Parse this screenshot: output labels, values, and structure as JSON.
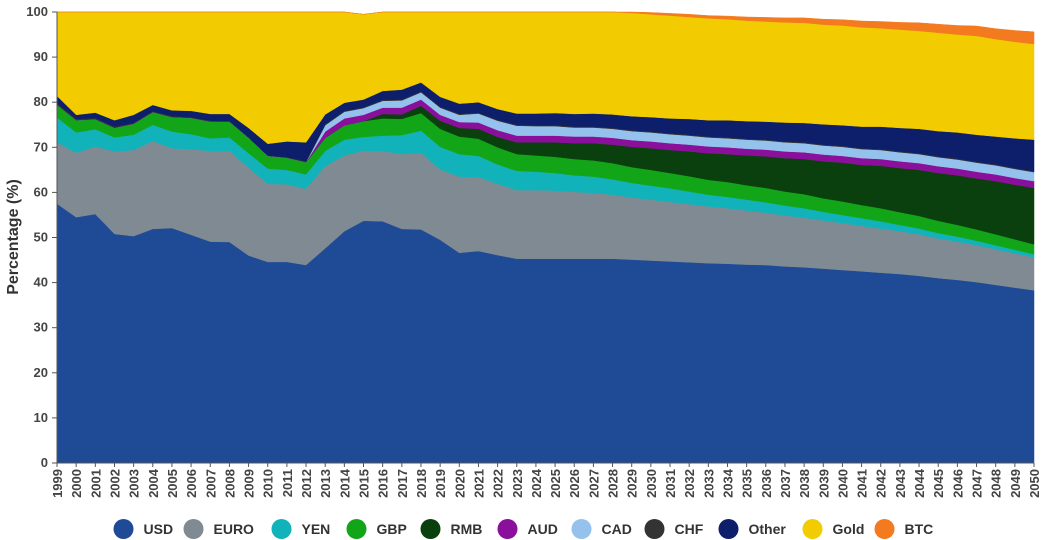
{
  "chart_data": {
    "type": "area",
    "stacked": true,
    "ylabel": "Percentage (%)",
    "ylim": [
      0,
      100
    ],
    "yticks": [
      0,
      10,
      20,
      30,
      40,
      50,
      60,
      70,
      80,
      90,
      100
    ],
    "legend_position": "bottom",
    "x": [
      1999,
      2000,
      2001,
      2002,
      2003,
      2004,
      2005,
      2006,
      2007,
      2008,
      2009,
      2010,
      2011,
      2012,
      2013,
      2014,
      2015,
      2016,
      2017,
      2018,
      2019,
      2020,
      2021,
      2022,
      2023,
      2024,
      2025,
      2026,
      2027,
      2028,
      2029,
      2030,
      2031,
      2032,
      2033,
      2034,
      2035,
      2036,
      2037,
      2038,
      2039,
      2040,
      2041,
      2042,
      2043,
      2044,
      2045,
      2046,
      2047,
      2048,
      2049,
      2050
    ],
    "series": [
      {
        "name": "USD",
        "color": "#1f4a96",
        "values": [
          57.5,
          54.5,
          55.2,
          50.8,
          50.3,
          51.9,
          52.1,
          50.6,
          49.1,
          49.0,
          46.0,
          44.6,
          44.6,
          43.9,
          47.6,
          51.4,
          53.7,
          53.6,
          51.9,
          51.8,
          49.5,
          46.6,
          47.0,
          46.1,
          45.3,
          45.3,
          45.3,
          45.3,
          45.3,
          45.3,
          45.1,
          44.9,
          44.7,
          44.5,
          44.3,
          44.2,
          44.0,
          43.9,
          43.6,
          43.4,
          43.1,
          42.8,
          42.5,
          42.2,
          41.9,
          41.5,
          41.0,
          40.6,
          40.1,
          39.5,
          38.9,
          38.3
        ]
      },
      {
        "name": "EURO",
        "color": "#7f8a93",
        "values": [
          13.6,
          14.3,
          15.0,
          18.3,
          19.1,
          19.5,
          17.7,
          19.0,
          20.1,
          20.2,
          19.5,
          17.3,
          17.2,
          16.9,
          18.2,
          16.8,
          15.6,
          15.6,
          16.6,
          17.0,
          15.6,
          16.9,
          16.4,
          15.8,
          15.2,
          15.2,
          15.1,
          14.8,
          14.6,
          14.2,
          13.8,
          13.5,
          13.2,
          12.9,
          12.6,
          12.3,
          12.0,
          11.6,
          11.3,
          11.0,
          10.7,
          10.4,
          10.1,
          9.8,
          9.5,
          9.2,
          8.8,
          8.5,
          8.2,
          7.9,
          7.6,
          7.3
        ]
      },
      {
        "name": "YEN",
        "color": "#12b2bb",
        "values": [
          5.5,
          4.5,
          3.8,
          3.1,
          3.4,
          3.6,
          3.7,
          3.3,
          2.8,
          3.0,
          3.2,
          3.4,
          3.2,
          3.2,
          3.4,
          3.5,
          3.0,
          3.4,
          4.2,
          4.9,
          5.0,
          5.0,
          4.7,
          4.3,
          4.3,
          4.1,
          3.9,
          3.7,
          3.6,
          3.4,
          3.2,
          3.1,
          3.0,
          2.8,
          2.6,
          2.5,
          2.4,
          2.3,
          2.2,
          2.1,
          1.9,
          1.8,
          1.7,
          1.6,
          1.4,
          1.3,
          1.2,
          1.1,
          1.0,
          0.9,
          0.8,
          0.7
        ]
      },
      {
        "name": "GBP",
        "color": "#13a518",
        "values": [
          2.8,
          2.7,
          2.2,
          2.1,
          2.4,
          2.8,
          3.2,
          3.6,
          3.7,
          3.5,
          3.4,
          2.8,
          2.7,
          2.7,
          2.9,
          3.2,
          3.5,
          3.8,
          3.6,
          3.9,
          4.0,
          3.9,
          3.8,
          3.8,
          3.7,
          3.6,
          3.6,
          3.6,
          3.6,
          3.6,
          3.5,
          3.5,
          3.4,
          3.4,
          3.3,
          3.3,
          3.2,
          3.2,
          3.1,
          3.1,
          3.0,
          3.0,
          2.9,
          2.9,
          2.8,
          2.8,
          2.7,
          2.6,
          2.5,
          2.4,
          2.3,
          2.2
        ]
      },
      {
        "name": "RMB",
        "color": "#0a400d",
        "values": [
          0,
          0,
          0,
          0,
          0,
          0,
          0,
          0,
          0,
          0,
          0,
          0,
          0,
          0,
          0,
          0,
          0,
          1.0,
          1.0,
          1.6,
          1.8,
          1.9,
          2.2,
          2.3,
          2.6,
          2.9,
          3.2,
          3.5,
          3.8,
          4.1,
          4.5,
          4.8,
          5.1,
          5.5,
          5.9,
          6.2,
          6.6,
          7.0,
          7.4,
          7.8,
          8.2,
          8.6,
          8.9,
          9.4,
          9.8,
          10.2,
          10.6,
          11.0,
          11.3,
          11.8,
          12.1,
          12.5
        ]
      },
      {
        "name": "AUD",
        "color": "#8a0f9b",
        "values": [
          0,
          0,
          0,
          0,
          0,
          0,
          0,
          0,
          0,
          0,
          0,
          0,
          0,
          0,
          1.4,
          1.5,
          1.4,
          1.4,
          1.5,
          1.4,
          1.3,
          1.3,
          1.4,
          1.5,
          1.5,
          1.5,
          1.5,
          1.5,
          1.5,
          1.5,
          1.5,
          1.5,
          1.5,
          1.5,
          1.5,
          1.5,
          1.5,
          1.5,
          1.5,
          1.5,
          1.5,
          1.5,
          1.5,
          1.5,
          1.5,
          1.5,
          1.5,
          1.5,
          1.5,
          1.5,
          1.5,
          1.5
        ]
      },
      {
        "name": "CAD",
        "color": "#95c2ec",
        "values": [
          0,
          0,
          0,
          0,
          0,
          0,
          0,
          0,
          0,
          0,
          0,
          0,
          0,
          0,
          1.4,
          1.5,
          1.5,
          1.5,
          1.6,
          1.6,
          1.6,
          1.6,
          2.0,
          2.1,
          2.2,
          2.1,
          2.1,
          2.0,
          2.0,
          2.0,
          2.0,
          2.0,
          2.0,
          2.0,
          2.0,
          2.0,
          2.0,
          2.0,
          2.0,
          2.0,
          2.0,
          2.0,
          2.0,
          2.0,
          2.0,
          2.0,
          2.0,
          2.0,
          2.0,
          2.0,
          2.0,
          2.0
        ]
      },
      {
        "name": "CHF",
        "color": "#333333",
        "values": [
          0.4,
          0.3,
          0.3,
          0.3,
          0.2,
          0.2,
          0.2,
          0.2,
          0.2,
          0.1,
          0.1,
          0.1,
          0.1,
          0.2,
          0.2,
          0.2,
          0.2,
          0.2,
          0.2,
          0.2,
          0.2,
          0.2,
          0.2,
          0.2,
          0.2,
          0.2,
          0.2,
          0.2,
          0.2,
          0.2,
          0.2,
          0.2,
          0.2,
          0.2,
          0.2,
          0.2,
          0.2,
          0.2,
          0.2,
          0.2,
          0.2,
          0.2,
          0.2,
          0.2,
          0.2,
          0.2,
          0.2,
          0.2,
          0.2,
          0.2,
          0.2,
          0.2
        ]
      },
      {
        "name": "Other",
        "color": "#0d1f6b",
        "values": [
          1.6,
          0.9,
          1.2,
          1.4,
          1.8,
          1.4,
          1.3,
          1.4,
          1.5,
          1.6,
          2.1,
          2.6,
          3.5,
          4.2,
          2.2,
          1.8,
          1.7,
          2.0,
          2.2,
          2.0,
          2.2,
          2.3,
          2.3,
          2.4,
          2.5,
          2.6,
          2.7,
          2.8,
          2.9,
          3.0,
          3.1,
          3.2,
          3.3,
          3.5,
          3.6,
          3.8,
          3.9,
          4.0,
          4.2,
          4.3,
          4.5,
          4.6,
          4.8,
          5.0,
          5.2,
          5.4,
          5.6,
          5.8,
          6.0,
          6.2,
          6.6,
          7.0
        ]
      },
      {
        "name": "Gold",
        "color": "#f2cc00",
        "values": [
          18.6,
          22.8,
          22.3,
          24.0,
          22.8,
          20.6,
          21.8,
          21.9,
          22.6,
          22.6,
          25.7,
          29.2,
          28.7,
          28.9,
          22.7,
          20.1,
          18.9,
          17.5,
          17.2,
          15.6,
          18.8,
          20.3,
          20.0,
          21.5,
          22.5,
          22.5,
          22.4,
          22.6,
          22.5,
          22.7,
          22.9,
          22.8,
          22.8,
          22.6,
          22.6,
          22.4,
          22.3,
          22.2,
          22.2,
          22.2,
          22.1,
          22.1,
          22.0,
          21.8,
          21.8,
          21.7,
          21.8,
          21.7,
          21.9,
          21.6,
          21.4,
          21.2
        ]
      },
      {
        "name": "BTC",
        "color": "#f47a1f",
        "values": [
          0,
          0,
          0,
          0,
          0,
          0,
          0,
          0,
          0,
          0,
          0,
          0,
          0,
          0,
          0,
          0,
          0,
          0,
          0,
          0,
          0,
          0,
          0,
          0,
          0,
          0,
          0,
          0,
          0,
          0,
          0.2,
          0.4,
          0.5,
          0.6,
          0.6,
          0.7,
          0.8,
          0.9,
          1.0,
          1.1,
          1.2,
          1.3,
          1.4,
          1.5,
          1.6,
          1.8,
          1.9,
          2.0,
          2.2,
          2.3,
          2.5,
          2.7
        ]
      }
    ]
  }
}
